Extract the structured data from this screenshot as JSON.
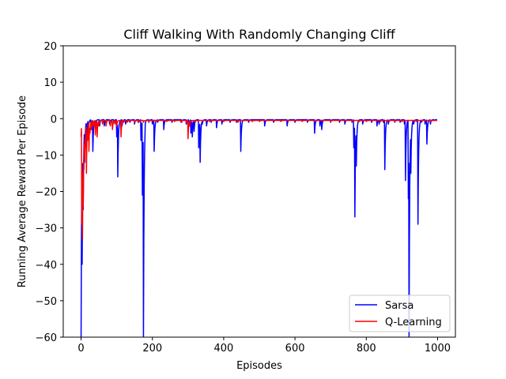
{
  "chart_data": {
    "type": "line",
    "title": "Cliff Walking With Randomly Changing Cliff",
    "xlabel": "Episodes",
    "ylabel": "Running Average Reward Per Episode",
    "xlim": [
      -50,
      1050
    ],
    "ylim": [
      -60,
      20
    ],
    "xticks": [
      0,
      200,
      400,
      600,
      800,
      1000
    ],
    "yticks": [
      -60,
      -50,
      -40,
      -30,
      -20,
      -10,
      0,
      10,
      20
    ],
    "xtick_labels": [
      "0",
      "200",
      "400",
      "600",
      "800",
      "1000"
    ],
    "ytick_labels": [
      "−60",
      "−50",
      "−40",
      "−30",
      "−20",
      "−10",
      "0",
      "10",
      "20"
    ],
    "grid": false,
    "legend_position": "lower-right",
    "series": [
      {
        "name": "Sarsa",
        "color": "#0000ff",
        "baseline": -0.3,
        "recovery": 0.55,
        "spikes": [
          [
            0,
            -60
          ],
          [
            3,
            -40
          ],
          [
            6,
            -25
          ],
          [
            10,
            -12
          ],
          [
            15,
            -6
          ],
          [
            20,
            -4
          ],
          [
            28,
            -3
          ],
          [
            33,
            -9
          ],
          [
            40,
            -2
          ],
          [
            52,
            -2
          ],
          [
            65,
            -2
          ],
          [
            80,
            -1.5
          ],
          [
            92,
            -1
          ],
          [
            100,
            -5
          ],
          [
            103,
            -16
          ],
          [
            115,
            -2
          ],
          [
            125,
            -1.5
          ],
          [
            137,
            -1
          ],
          [
            150,
            -1.5
          ],
          [
            162,
            -1
          ],
          [
            168,
            -6
          ],
          [
            172,
            -21
          ],
          [
            175,
            -60
          ],
          [
            180,
            -1.5
          ],
          [
            190,
            -1
          ],
          [
            200,
            -1.5
          ],
          [
            205,
            -9
          ],
          [
            215,
            -1
          ],
          [
            232,
            -3
          ],
          [
            255,
            -1
          ],
          [
            282,
            -1
          ],
          [
            295,
            -1.5
          ],
          [
            302,
            -2
          ],
          [
            308,
            -4
          ],
          [
            312,
            -5
          ],
          [
            317,
            -3.5
          ],
          [
            330,
            -8
          ],
          [
            334,
            -12
          ],
          [
            340,
            -1.5
          ],
          [
            352,
            -2
          ],
          [
            365,
            -1
          ],
          [
            380,
            -2.5
          ],
          [
            395,
            -1.5
          ],
          [
            418,
            -1
          ],
          [
            436,
            -1
          ],
          [
            448,
            -9
          ],
          [
            470,
            -1
          ],
          [
            515,
            -2
          ],
          [
            540,
            -1
          ],
          [
            578,
            -2
          ],
          [
            600,
            -1
          ],
          [
            635,
            -1
          ],
          [
            655,
            -4
          ],
          [
            670,
            -2
          ],
          [
            675,
            -3
          ],
          [
            700,
            -1
          ],
          [
            725,
            -1
          ],
          [
            740,
            -1.5
          ],
          [
            760,
            -1
          ],
          [
            765,
            -8
          ],
          [
            768,
            -27
          ],
          [
            772,
            -13
          ],
          [
            790,
            -1.5
          ],
          [
            815,
            -1
          ],
          [
            830,
            -2
          ],
          [
            836,
            -1.5
          ],
          [
            848,
            -1
          ],
          [
            852,
            -14
          ],
          [
            862,
            -1.5
          ],
          [
            880,
            -1
          ],
          [
            895,
            -1
          ],
          [
            907,
            -1.5
          ],
          [
            910,
            -17
          ],
          [
            915,
            -1
          ],
          [
            918,
            -22
          ],
          [
            920,
            -60
          ],
          [
            925,
            -15
          ],
          [
            933,
            -1.5
          ],
          [
            945,
            -29
          ],
          [
            955,
            -1
          ],
          [
            965,
            -1.5
          ],
          [
            970,
            -7
          ],
          [
            980,
            -1.5
          ],
          [
            990,
            -0.5
          ]
        ]
      },
      {
        "name": "Q-Learning",
        "color": "#ff0000",
        "baseline": -0.5,
        "recovery": 0.5,
        "spikes": [
          [
            0,
            -5
          ],
          [
            2,
            -29
          ],
          [
            4,
            -33
          ],
          [
            6,
            -24
          ],
          [
            8,
            -14
          ],
          [
            10,
            -11
          ],
          [
            12,
            -8
          ],
          [
            15,
            -15
          ],
          [
            18,
            -6
          ],
          [
            22,
            -9
          ],
          [
            25,
            -4
          ],
          [
            30,
            -3
          ],
          [
            35,
            -2
          ],
          [
            40,
            -4.5
          ],
          [
            45,
            -5
          ],
          [
            50,
            -2
          ],
          [
            60,
            -1.5
          ],
          [
            70,
            -2
          ],
          [
            82,
            -2
          ],
          [
            88,
            -3
          ],
          [
            95,
            -1.5
          ],
          [
            100,
            -2
          ],
          [
            112,
            -5
          ],
          [
            120,
            -1
          ],
          [
            130,
            -1
          ],
          [
            150,
            -1
          ],
          [
            160,
            -1
          ],
          [
            175,
            -1
          ],
          [
            190,
            -0.8
          ],
          [
            210,
            -1
          ],
          [
            240,
            -0.8
          ],
          [
            262,
            -0.8
          ],
          [
            280,
            -1
          ],
          [
            295,
            -1
          ],
          [
            300,
            -5.5
          ],
          [
            305,
            -2
          ],
          [
            320,
            -1
          ],
          [
            360,
            -0.8
          ],
          [
            400,
            -0.8
          ],
          [
            440,
            -1
          ],
          [
            480,
            -0.8
          ],
          [
            500,
            -0.8
          ],
          [
            560,
            -0.8
          ],
          [
            620,
            -0.8
          ],
          [
            700,
            -0.8
          ],
          [
            760,
            -0.8
          ],
          [
            780,
            -0.8
          ],
          [
            800,
            -0.8
          ],
          [
            840,
            -0.8
          ],
          [
            860,
            -0.8
          ],
          [
            880,
            -0.8
          ],
          [
            900,
            -0.8
          ],
          [
            940,
            -0.8
          ],
          [
            980,
            -0.8
          ]
        ]
      }
    ]
  }
}
